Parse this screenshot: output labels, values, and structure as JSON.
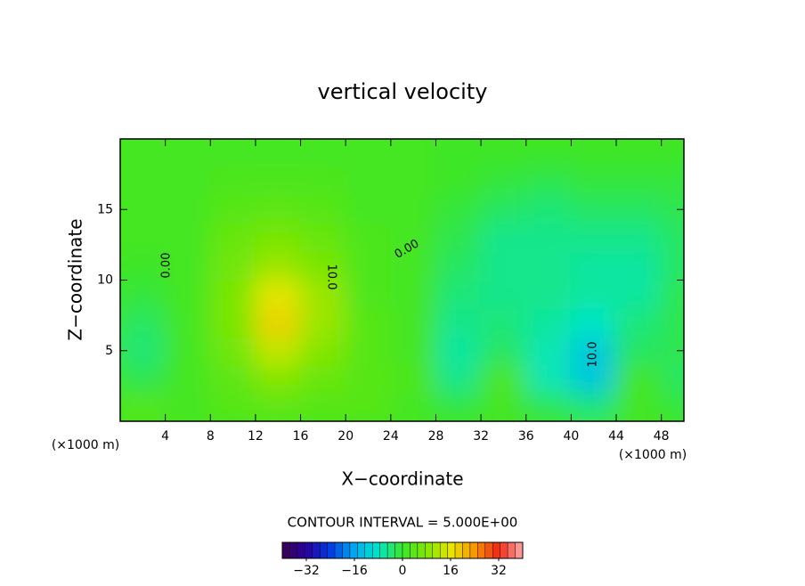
{
  "chart_data": {
    "type": "contour",
    "title": "vertical velocity",
    "x_label": "X−coordinate",
    "y_label": "Z−coordinate",
    "x_unit": "(×1000 m)",
    "y_unit": "(×1000 m)",
    "contour_note": "CONTOUR INTERVAL = 5.000E+00",
    "xlim": [
      0,
      50
    ],
    "ylim": [
      0,
      20
    ],
    "xticks": [
      4,
      8,
      12,
      16,
      20,
      24,
      28,
      32,
      36,
      40,
      44,
      48
    ],
    "yticks": [
      5,
      10,
      15
    ],
    "x": [
      2,
      6,
      10,
      14,
      18,
      22,
      26,
      30,
      34,
      38,
      42,
      46,
      50
    ],
    "y": [
      1,
      3,
      5,
      7,
      9,
      11,
      13,
      15,
      17,
      19
    ],
    "z": [
      [
        3,
        1,
        3,
        4,
        3,
        3,
        1,
        -1,
        1,
        -2,
        -4,
        1,
        -1
      ],
      [
        -2,
        1,
        4,
        8,
        5,
        3,
        2,
        -5,
        2,
        -7,
        -12,
        1,
        -3
      ],
      [
        -4,
        1,
        6,
        13,
        8,
        3,
        1,
        -6,
        -3,
        -7,
        -12,
        -3,
        -2
      ],
      [
        -3,
        1,
        7,
        18,
        10,
        3,
        1,
        -5,
        -4,
        -6,
        -8,
        -4,
        -2
      ],
      [
        -1,
        1,
        7,
        16,
        10,
        2,
        1,
        -4,
        -5,
        -5,
        -6,
        -6,
        -2
      ],
      [
        0,
        1,
        6,
        10,
        7,
        2,
        1,
        -3,
        -5,
        -5,
        -6,
        -6,
        -3
      ],
      [
        1,
        1,
        5,
        7,
        5,
        2,
        1,
        -2,
        -5,
        -5,
        -5,
        -5,
        -3
      ],
      [
        1,
        1,
        3,
        4,
        3,
        1,
        1,
        -1,
        -3,
        -4,
        -3,
        -3,
        -2
      ],
      [
        1,
        1,
        2,
        2,
        2,
        1,
        1,
        0,
        -1,
        -2,
        -1,
        -1,
        -1
      ],
      [
        1,
        1,
        1,
        1,
        1,
        1,
        1,
        0,
        0,
        0,
        0,
        0,
        0
      ]
    ],
    "annotations": [
      "0.00",
      "10.0",
      "0.00",
      "10.0"
    ],
    "clim": [
      -40,
      40
    ],
    "cticks": [
      {
        "value": -32,
        "label": "−32"
      },
      {
        "value": -16,
        "label": "−16"
      },
      0,
      16,
      32
    ]
  }
}
